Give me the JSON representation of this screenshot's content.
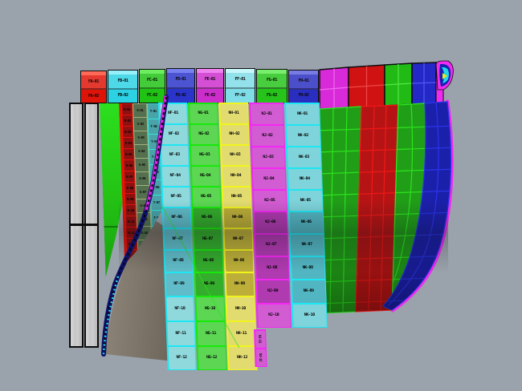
{
  "viewport": {
    "background": "#9aa2ab",
    "description": "3D CAD shaded viewport of hull shell plating model"
  },
  "flat_bars": {
    "fill": "#c9c9c9",
    "edge": "#0c0c0c",
    "count": 2
  },
  "top_blocks": [
    {
      "id": "block-red",
      "color": "#de1408",
      "light": "#ff6a58",
      "row_labels": [
        "FA-01",
        "FA-02"
      ]
    },
    {
      "id": "block-cyan",
      "color": "#2cd2e4",
      "light": "#96f0fa",
      "row_labels": [
        "FB-01",
        "FB-02"
      ]
    },
    {
      "id": "block-green",
      "color": "#20c214",
      "light": "#6cee60",
      "row_labels": [
        "FC-01",
        "FC-02"
      ]
    },
    {
      "id": "block-blue",
      "color": "#2a34ca",
      "light": "#7680ee",
      "row_labels": [
        "FD-01",
        "FD-02"
      ]
    },
    {
      "id": "block-magenta",
      "color": "#cc2ecc",
      "light": "#ee82ee",
      "row_labels": [
        "FE-01",
        "FE-02"
      ]
    },
    {
      "id": "block-lightcyan",
      "color": "#7fdde8",
      "light": "#c6f6fa",
      "row_labels": [
        "FF-01",
        "FF-02"
      ]
    },
    {
      "id": "block-green-2",
      "color": "#26c41a",
      "light": "#78ee6c",
      "row_labels": [
        "FG-01",
        "FG-02"
      ]
    },
    {
      "id": "block-blue-2",
      "color": "#2a2ec0",
      "light": "#787ce2",
      "row_labels": [
        "FH-01",
        "FH-02"
      ]
    }
  ],
  "top_course": {
    "colors": [
      "#d82ad8",
      "#d01212",
      "#22bb16",
      "#2328c6"
    ],
    "lines": [
      "#f06af0",
      "#f04848",
      "#52e846",
      "#525af0"
    ],
    "edge": "#f02af0"
  },
  "bands": [
    {
      "name": "band-green-a",
      "fill": "#219e18",
      "line": "#2ce41e"
    },
    {
      "name": "band-red",
      "fill": "#b61414",
      "line": "#f01818"
    },
    {
      "name": "band-green-b",
      "fill": "#219e18",
      "line": "#2ce41e"
    },
    {
      "name": "band-blue",
      "fill": "#1b20aa",
      "line": "#2a34e8"
    }
  ],
  "columns": [
    {
      "name": "col-cyan-1",
      "border": "#1ee6f2",
      "cell": "#8fd9dd",
      "cell2": "#5fbcc8",
      "labels": [
        "NF-01",
        "NF-02",
        "NF-03",
        "NF-04",
        "NF-05",
        "NF-06",
        "NF-07",
        "NF-08",
        "NF-09",
        "NF-10",
        "NF-11",
        "NF-12"
      ]
    },
    {
      "name": "col-green",
      "border": "#17e80c",
      "cell": "#5cd653",
      "cell2": "#34ac2c",
      "labels": [
        "NG-01",
        "NG-02",
        "NG-03",
        "NG-04",
        "NG-05",
        "NG-06",
        "NG-07",
        "NG-08",
        "NG-09",
        "NG-10",
        "NG-11",
        "NG-12"
      ]
    },
    {
      "name": "col-yellow",
      "border": "#f0f41c",
      "cell": "#e2dc70",
      "cell2": "#bcae38",
      "labels": [
        "NH-01",
        "NH-02",
        "NH-03",
        "NH-04",
        "NH-05",
        "NH-06",
        "NH-07",
        "NH-08",
        "NH-09",
        "NH-10",
        "NH-11",
        "NH-12"
      ]
    },
    {
      "name": "col-magenta",
      "border": "#f428f4",
      "cell": "#d25cd2",
      "cell2": "#b03ab0",
      "labels": [
        "NJ-01",
        "NJ-02",
        "NJ-03",
        "NJ-04",
        "NJ-05",
        "NJ-06",
        "NJ-07",
        "NJ-08",
        "NJ-09",
        "NJ-10"
      ],
      "tail_labels": [
        "NJ-11",
        "NJ-12"
      ]
    },
    {
      "name": "col-cyan-2",
      "border": "#1ee6f2",
      "cell": "#7fd3da",
      "cell2": "#52b6c2",
      "labels": [
        "NK-01",
        "NK-02",
        "NK-03",
        "NK-04",
        "NK-05",
        "NK-06",
        "NK-07",
        "NK-08",
        "NK-09",
        "NK-10"
      ]
    }
  ],
  "left_strips": {
    "green_panel": {
      "color": "#25e019",
      "seam": "#0d7a08"
    },
    "red_col": {
      "border": "#e81208",
      "cell": "#8f1010",
      "labels": [
        "R-01",
        "R-02",
        "R-03",
        "R-04",
        "R-05",
        "R-06",
        "R-07",
        "R-08",
        "R-09",
        "R-10",
        "R-11",
        "R-12",
        "R-13",
        "R-14"
      ]
    },
    "olive_col": {
      "border": "#9fb37f",
      "cell": "#55704e",
      "labels": [
        "S-01",
        "S-02",
        "S-03",
        "S-04",
        "S-05",
        "S-06",
        "S-07",
        "S-08",
        "S-09",
        "S-10",
        "S-11"
      ]
    },
    "teal_col": {
      "border": "#35e4da",
      "cell": "#49a3a8",
      "labels": [
        "T-01",
        "T-02",
        "T-03",
        "T-04",
        "T-05",
        "T-06",
        "T-07",
        "T-08"
      ]
    }
  },
  "stem_curve": {
    "outer": "#0e1168",
    "highlight": "#e225e2",
    "dash": "#05050a",
    "speckle": "#25e2ea"
  },
  "shadow_surface": {
    "from": "#90887b",
    "to": "#6e665b"
  },
  "curl_icon": {
    "ring": "#f02af0",
    "inner": "#1520b0",
    "crescent": "#22d6e8",
    "wedge": "#f0e818"
  }
}
